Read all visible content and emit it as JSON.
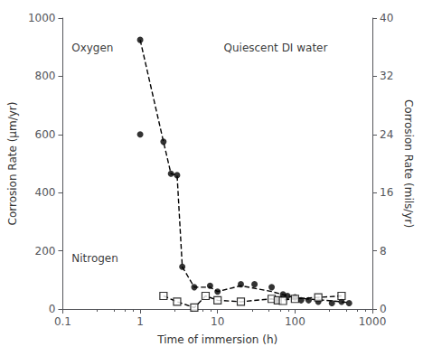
{
  "chart_data": {
    "type": "line",
    "xlabel": "Time of immersion (h)",
    "ylabel": "Corrosion Rate (μm/yr)",
    "y2label": "Corrosion Rate (mils/yr)",
    "log": "x",
    "grid": false,
    "xlim": [
      0.1,
      1000
    ],
    "xticks": [
      0.1,
      1,
      10,
      100,
      1000
    ],
    "ylim": [
      0,
      1000
    ],
    "yticks": [
      0,
      200,
      400,
      600,
      800,
      1000
    ],
    "y2lim": [
      0,
      40
    ],
    "y2ticks": [
      0,
      8,
      16,
      24,
      32,
      40
    ],
    "series": [
      {
        "type": "line",
        "line_style": "dashed",
        "color": "#000000",
        "x": [
          1.0,
          2.0,
          2.5,
          3.0,
          3.5,
          5.0,
          8.0,
          10.0,
          20.0,
          50.0,
          100.0,
          300.0,
          500.0
        ],
        "values": [
          925,
          575,
          465,
          460,
          145,
          75,
          75,
          60,
          80,
          60,
          38,
          28,
          22
        ]
      },
      {
        "type": "scatter",
        "marker": "circle",
        "color": "#000000",
        "x": [
          1.0,
          1.0,
          2.0,
          2.5,
          3.0,
          3.5,
          5.0,
          8.0,
          10.0,
          20.0,
          30.0,
          50.0,
          60.0,
          70.0,
          80.0,
          100.0,
          120.0,
          150.0,
          200.0,
          300.0,
          400.0,
          500.0
        ],
        "values": [
          925,
          600,
          575,
          465,
          460,
          145,
          75,
          80,
          60,
          85,
          85,
          75,
          30,
          50,
          45,
          40,
          30,
          30,
          25,
          20,
          25,
          20
        ]
      },
      {
        "type": "line",
        "line_style": "dashed",
        "color": "#000000",
        "x": [
          2.0,
          3.0,
          5.0,
          7.0,
          10.0,
          20.0,
          50.0,
          60.0,
          100.0,
          200.0,
          400.0
        ],
        "values": [
          45,
          25,
          5,
          45,
          30,
          25,
          35,
          30,
          35,
          40,
          45
        ]
      },
      {
        "type": "scatter",
        "marker": "open_square",
        "color": "#000000",
        "x": [
          2.0,
          3.0,
          5.0,
          7.0,
          10.0,
          20.0,
          50.0,
          60.0,
          70.0,
          100.0,
          200.0,
          400.0
        ],
        "values": [
          45,
          25,
          5,
          45,
          30,
          25,
          35,
          30,
          28,
          35,
          40,
          45
        ]
      }
    ],
    "annotations": [
      {
        "text": "Oxygen",
        "x": 0.13,
        "y": 880
      },
      {
        "text": "Nitrogen",
        "x": 0.13,
        "y": 155
      },
      {
        "text": "Quiescent DI water",
        "x": 12,
        "y": 880
      }
    ]
  }
}
